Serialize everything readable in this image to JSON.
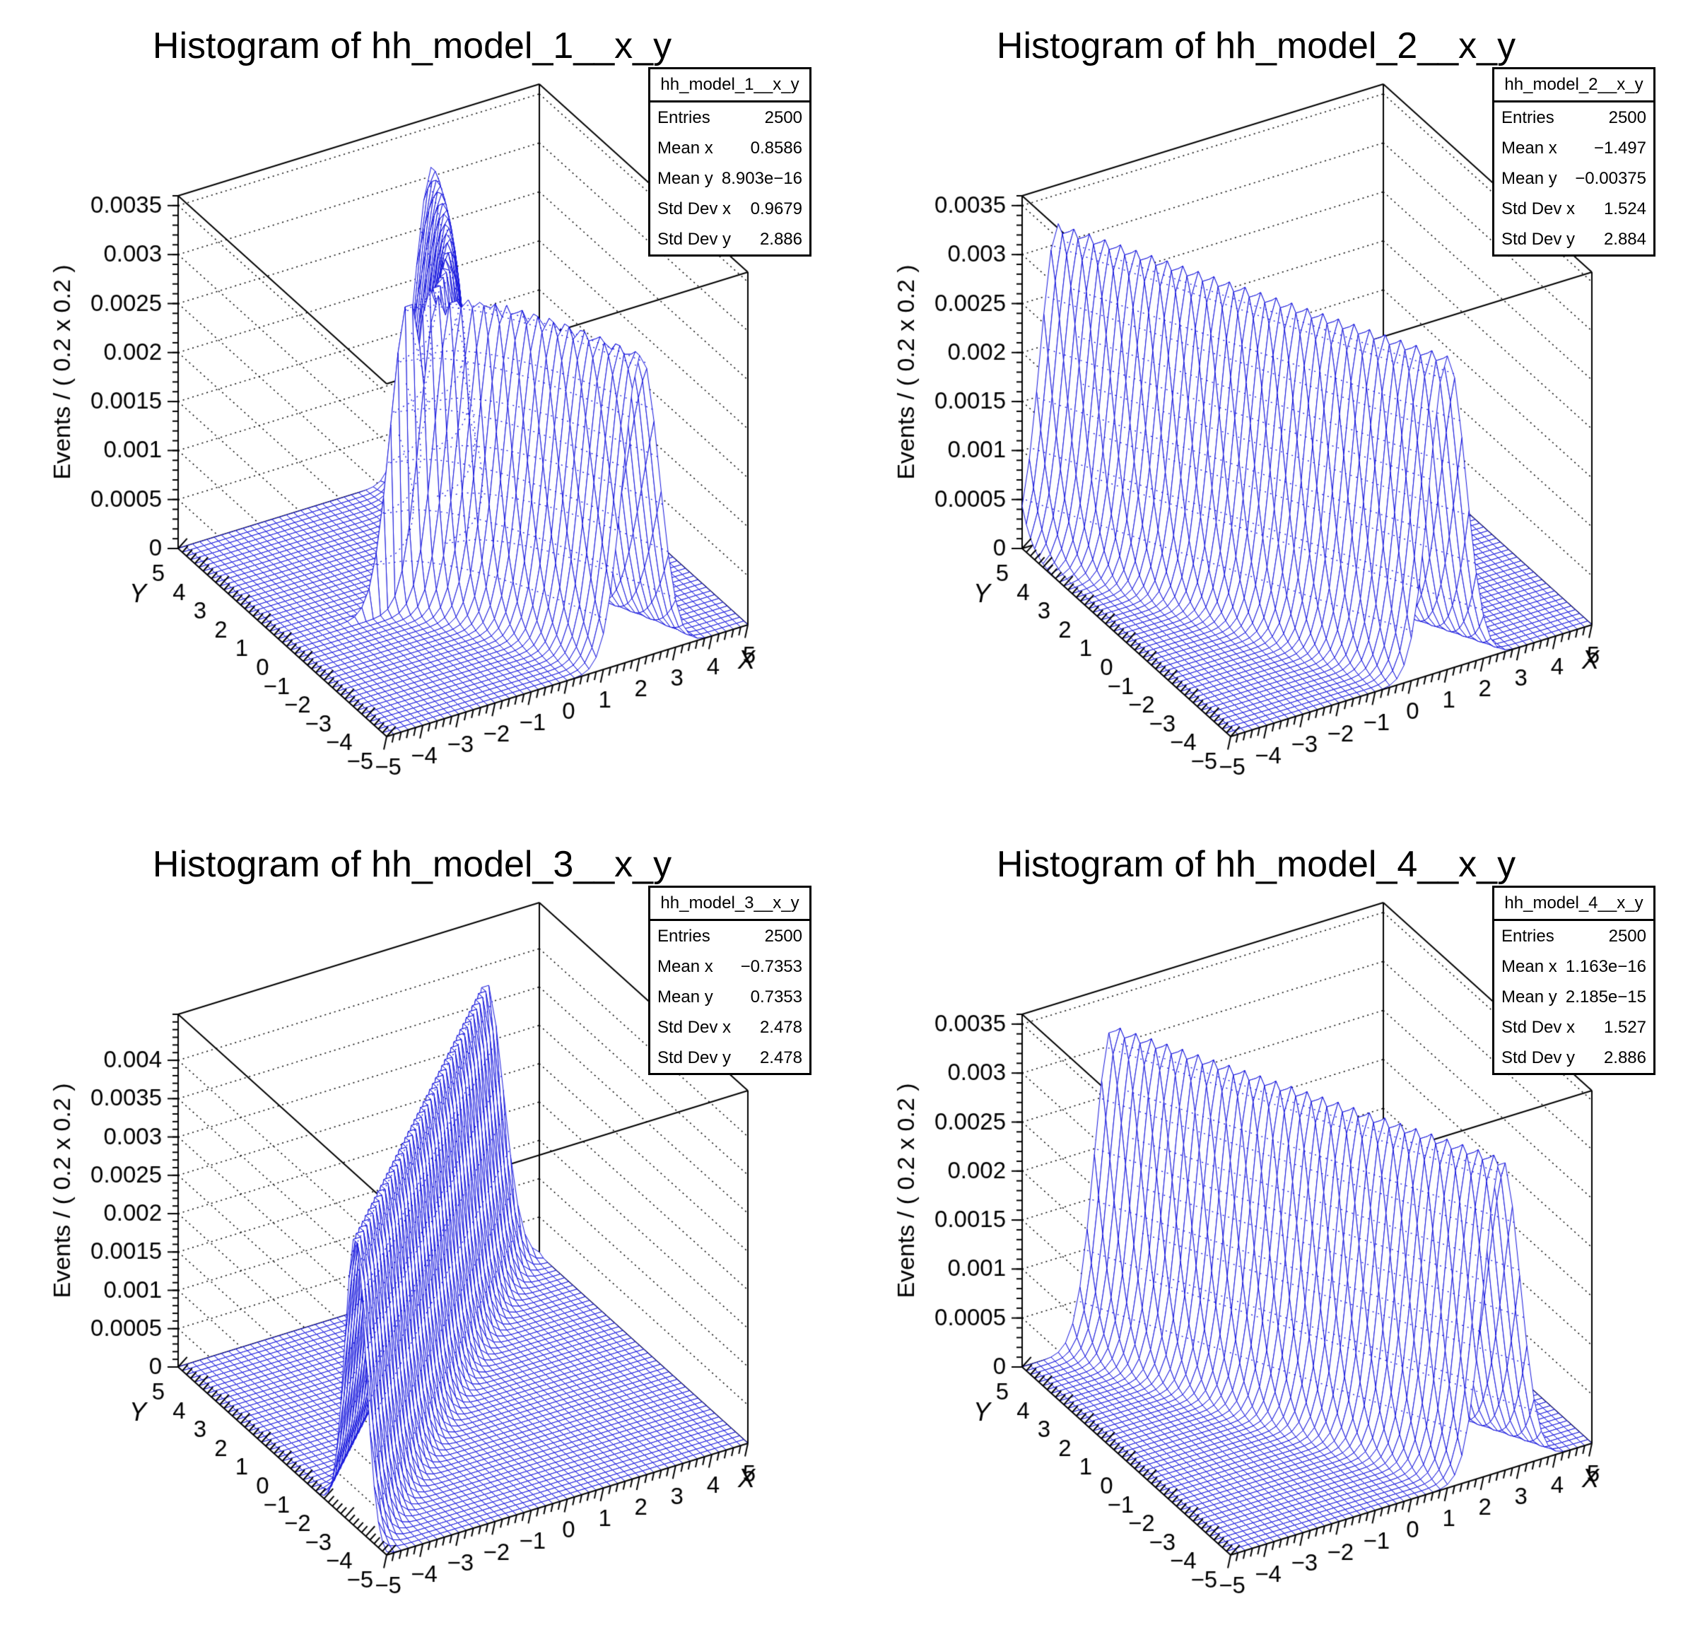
{
  "colors": {
    "background": "#ffffff",
    "mesh_line": "#1414dd",
    "frame_line": "#000000",
    "wall_grid_dots": "#000000",
    "text": "#000000"
  },
  "chart_data": [
    {
      "type": "surface3d",
      "name": "hh_model_1__x_y",
      "title": "Histogram of hh_model_1__x_y",
      "stats": {
        "header": "hh_model_1__x_y",
        "rows": [
          {
            "label": "Entries",
            "value": "2500"
          },
          {
            "label": "Mean x",
            "value": "0.8586"
          },
          {
            "label": "Mean y",
            "value": "8.903e−16"
          },
          {
            "label": "Std Dev x",
            "value": "0.9679"
          },
          {
            "label": "Std Dev y",
            "value": "2.886"
          }
        ]
      },
      "x_axis": {
        "title": "X",
        "min": -5,
        "max": 5,
        "tick_values": [
          -5,
          -4,
          -3,
          -2,
          -1,
          0,
          1,
          2,
          3,
          4,
          5
        ],
        "tick_labels": [
          "−5",
          "−4",
          "−3",
          "−2",
          "−1",
          "0",
          "1",
          "2",
          "3",
          "4",
          "5"
        ],
        "minor_step": 0.2
      },
      "y_axis": {
        "title": "Y",
        "min": -5,
        "max": 5,
        "tick_values": [
          5,
          4,
          3,
          2,
          1,
          0,
          -1,
          -2,
          -3,
          -4,
          -5
        ],
        "tick_labels": [
          "5",
          "4",
          "3",
          "2",
          "1",
          "0",
          "−1",
          "−2",
          "−3",
          "−4",
          "−5"
        ],
        "minor_step": 0.2
      },
      "z_axis": {
        "title": "Events / ( 0.2 x 0.2 )",
        "tick_values": [
          0,
          0.0005,
          0.001,
          0.0015,
          0.002,
          0.0025,
          0.003,
          0.0035
        ],
        "tick_labels": [
          "0",
          "0.0005",
          "0.001",
          "0.0015",
          "0.002",
          "0.0025",
          "0.003",
          "0.0035"
        ],
        "box_max": 0.0036,
        "minor_step": 0.0001
      },
      "surface": {
        "kind": "gaussian_in_x_with_y_dependent_mean",
        "mean_fn_id": "sqrt",
        "mean_function": "a0 − a1·√(10·|y|)",
        "params": {
          "a0": -1.5,
          "a1": -0.5
        },
        "sigma": 0.5,
        "amplitude": 0.0031,
        "grid_step": 0.2,
        "x_range": [
          -5,
          5
        ],
        "y_range": [
          -5,
          5
        ]
      }
    },
    {
      "type": "surface3d",
      "name": "hh_model_2__x_y",
      "title": "Histogram of hh_model_2__x_y",
      "stats": {
        "header": "hh_model_2__x_y",
        "rows": [
          {
            "label": "Entries",
            "value": "2500"
          },
          {
            "label": "Mean x",
            "value": "−1.497"
          },
          {
            "label": "Mean y",
            "value": "−0.00375"
          },
          {
            "label": "Std Dev x",
            "value": "1.524"
          },
          {
            "label": "Std Dev y",
            "value": "2.884"
          }
        ]
      },
      "x_axis": {
        "title": "X",
        "min": -5,
        "max": 5,
        "tick_values": [
          -5,
          -4,
          -3,
          -2,
          -1,
          0,
          1,
          2,
          3,
          4,
          5
        ],
        "tick_labels": [
          "−5",
          "−4",
          "−3",
          "−2",
          "−1",
          "0",
          "1",
          "2",
          "3",
          "4",
          "5"
        ],
        "minor_step": 0.2
      },
      "y_axis": {
        "title": "Y",
        "min": -5,
        "max": 5,
        "tick_values": [
          5,
          4,
          3,
          2,
          1,
          0,
          -1,
          -2,
          -3,
          -4,
          -5
        ],
        "tick_labels": [
          "5",
          "4",
          "3",
          "2",
          "1",
          "0",
          "−1",
          "−2",
          "−3",
          "−4",
          "−5"
        ],
        "minor_step": 0.2
      },
      "z_axis": {
        "title": "Events / ( 0.2 x 0.2 )",
        "tick_values": [
          0,
          0.0005,
          0.001,
          0.0015,
          0.002,
          0.0025,
          0.003,
          0.0035
        ],
        "tick_labels": [
          "0",
          "0.0005",
          "0.001",
          "0.0015",
          "0.002",
          "0.0025",
          "0.003",
          "0.0035"
        ],
        "box_max": 0.0036,
        "minor_step": 0.0001
      },
      "surface": {
        "kind": "gaussian_in_x_with_y_dependent_mean",
        "mean_fn_id": "linear",
        "mean_function": "a0 + a1·y",
        "params": {
          "a0": -1.5,
          "a1": -0.5
        },
        "sigma": 0.5,
        "amplitude": 0.0032,
        "grid_step": 0.2,
        "x_range": [
          -5,
          5
        ],
        "y_range": [
          -5,
          5
        ]
      }
    },
    {
      "type": "surface3d",
      "name": "hh_model_3__x_y",
      "title": "Histogram of hh_model_3__x_y",
      "stats": {
        "header": "hh_model_3__x_y",
        "rows": [
          {
            "label": "Entries",
            "value": "2500"
          },
          {
            "label": "Mean x",
            "value": "−0.7353"
          },
          {
            "label": "Mean y",
            "value": "0.7353"
          },
          {
            "label": "Std Dev x",
            "value": "2.478"
          },
          {
            "label": "Std Dev y",
            "value": "2.478"
          }
        ]
      },
      "x_axis": {
        "title": "X",
        "min": -5,
        "max": 5,
        "tick_values": [
          -5,
          -4,
          -3,
          -2,
          -1,
          0,
          1,
          2,
          3,
          4,
          5
        ],
        "tick_labels": [
          "−5",
          "−4",
          "−3",
          "−2",
          "−1",
          "0",
          "1",
          "2",
          "3",
          "4",
          "5"
        ],
        "minor_step": 0.2
      },
      "y_axis": {
        "title": "Y",
        "min": -5,
        "max": 5,
        "tick_values": [
          5,
          4,
          3,
          2,
          1,
          0,
          -1,
          -2,
          -3,
          -4,
          -5
        ],
        "tick_labels": [
          "5",
          "4",
          "3",
          "2",
          "1",
          "0",
          "−1",
          "−2",
          "−3",
          "−4",
          "−5"
        ],
        "minor_step": 0.2
      },
      "z_axis": {
        "title": "Events / ( 0.2 x 0.2 )",
        "tick_values": [
          0,
          0.0005,
          0.001,
          0.0015,
          0.002,
          0.0025,
          0.003,
          0.0035,
          0.004
        ],
        "tick_labels": [
          "0",
          "0.0005",
          "0.001",
          "0.0015",
          "0.002",
          "0.0025",
          "0.003",
          "0.0035",
          "0.004"
        ],
        "box_max": 0.0046,
        "minor_step": 0.0001
      },
      "surface": {
        "kind": "gaussian_in_x_with_y_dependent_mean",
        "mean_fn_id": "offset",
        "mean_function": "y + a0",
        "params": {
          "a0": -1.5,
          "a1": -0.5
        },
        "sigma": 0.5,
        "amplitude": 0.0038,
        "grid_step": 0.2,
        "x_range": [
          -5,
          5
        ],
        "y_range": [
          -5,
          5
        ]
      }
    },
    {
      "type": "surface3d",
      "name": "hh_model_4__x_y",
      "title": "Histogram of hh_model_4__x_y",
      "stats": {
        "header": "hh_model_4__x_y",
        "rows": [
          {
            "label": "Entries",
            "value": "2500"
          },
          {
            "label": "Mean x",
            "value": "1.163e−16"
          },
          {
            "label": "Mean y",
            "value": "2.185e−15"
          },
          {
            "label": "Std Dev x",
            "value": "1.527"
          },
          {
            "label": "Std Dev y",
            "value": "2.886"
          }
        ]
      },
      "x_axis": {
        "title": "X",
        "min": -5,
        "max": 5,
        "tick_values": [
          -5,
          -4,
          -3,
          -2,
          -1,
          0,
          1,
          2,
          3,
          4,
          5
        ],
        "tick_labels": [
          "−5",
          "−4",
          "−3",
          "−2",
          "−1",
          "0",
          "1",
          "2",
          "3",
          "4",
          "5"
        ],
        "minor_step": 0.2
      },
      "y_axis": {
        "title": "Y",
        "min": -5,
        "max": 5,
        "tick_values": [
          5,
          4,
          3,
          2,
          1,
          0,
          -1,
          -2,
          -3,
          -4,
          -5
        ],
        "tick_labels": [
          "5",
          "4",
          "3",
          "2",
          "1",
          "0",
          "−1",
          "−2",
          "−3",
          "−4",
          "−5"
        ],
        "minor_step": 0.2
      },
      "z_axis": {
        "title": "Events / ( 0.2 x 0.2 )",
        "tick_values": [
          0,
          0.0005,
          0.001,
          0.0015,
          0.002,
          0.0025,
          0.003,
          0.0035
        ],
        "tick_labels": [
          "0",
          "0.0005",
          "0.001",
          "0.0015",
          "0.002",
          "0.0025",
          "0.003",
          "0.0035"
        ],
        "box_max": 0.0036,
        "minor_step": 0.0001
      },
      "surface": {
        "kind": "gaussian_in_x_with_y_dependent_mean",
        "mean_fn_id": "scale",
        "mean_function": "a1·y",
        "params": {
          "a0": -1.5,
          "a1": -0.5
        },
        "sigma": 0.5,
        "amplitude": 0.0032,
        "grid_step": 0.2,
        "x_range": [
          -5,
          5
        ],
        "y_range": [
          -5,
          5
        ]
      }
    }
  ]
}
